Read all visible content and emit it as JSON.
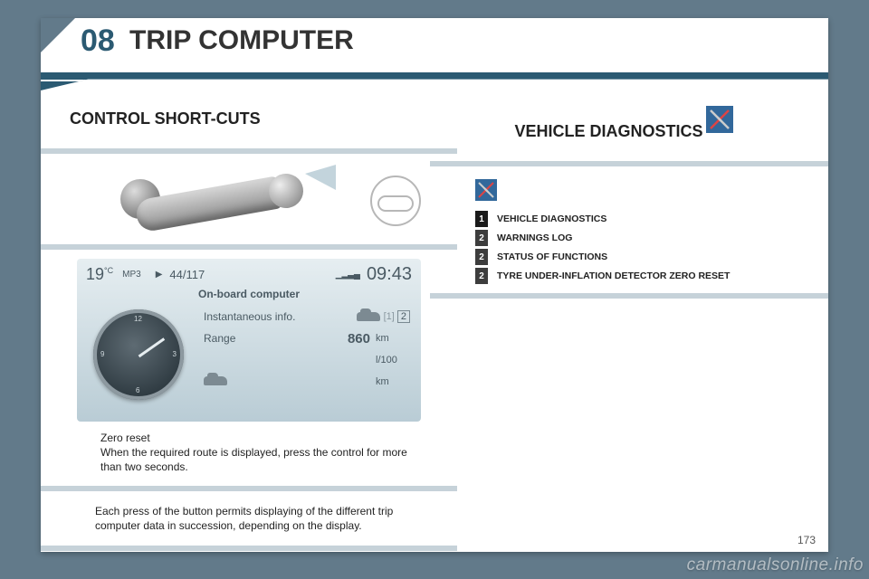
{
  "chapter": {
    "number": "08",
    "title": "TRIP COMPUTER"
  },
  "left": {
    "heading": "CONTROL SHORT-CUTS",
    "obc": {
      "temp_value": "19",
      "temp_unit": "°C",
      "source": "MP3",
      "play_glyph": "▶",
      "track": "44/117",
      "signal": "▁▂▃▄",
      "clock": "09:43",
      "title": "On-board computer",
      "gauge_ticks": {
        "t12": "12",
        "t3": "3",
        "t6": "6",
        "t9": "9"
      },
      "rows": {
        "instant": {
          "label": "Instantaneous info.",
          "tabs_inactive": "[1]",
          "tabs_active": "2"
        },
        "range": {
          "label": "Range",
          "value": "860",
          "unit": "km"
        },
        "consump": {
          "label": "",
          "value": "",
          "unit": "l/100"
        },
        "dist": {
          "label": "",
          "value": "",
          "unit": "km"
        }
      }
    },
    "caption_title": "Zero reset",
    "caption_body": "When the required route is displayed, press the control for more than two seconds.",
    "bottom_note": "Each press of the button permits displaying of the different trip computer data in succession, depending on the display."
  },
  "right": {
    "heading": "VEHICLE DIAGNOSTICS",
    "items": [
      {
        "num": "1",
        "level": 1,
        "label": "VEHICLE DIAGNOSTICS"
      },
      {
        "num": "2",
        "level": 2,
        "label": "WARNINGS LOG"
      },
      {
        "num": "2",
        "level": 2,
        "label": "STATUS OF FUNCTIONS"
      },
      {
        "num": "2",
        "level": 2,
        "label": "TYRE UNDER-INFLATION DETECTOR ZERO RESET"
      }
    ]
  },
  "colors": {
    "page_bg": "#627a8a",
    "accent": "#2b5a72",
    "stripe": "#c6d2d9",
    "obc_top": "#e6eef1",
    "obc_bottom": "#b9ccd5",
    "diag_icon_bg": "#32689b"
  },
  "footer": {
    "page_number": "173",
    "watermark": "carmanualsonline.info"
  }
}
